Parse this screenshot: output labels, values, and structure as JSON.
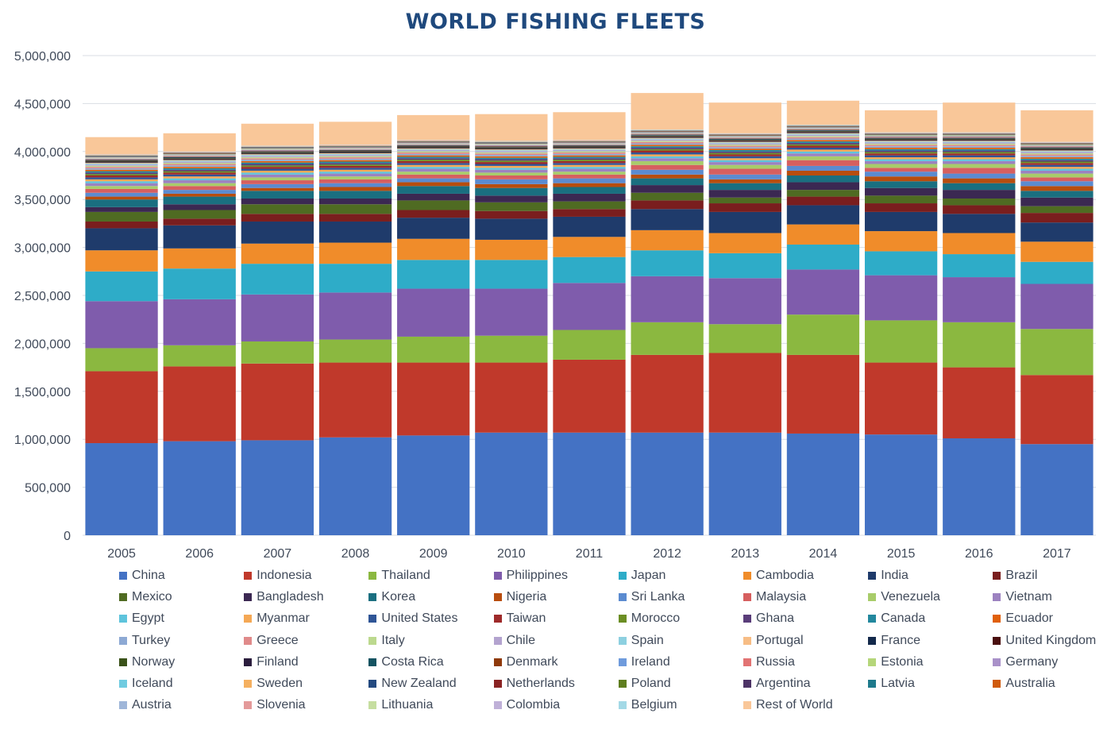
{
  "title": "WORLD FISHING FLEETS",
  "chart_data": {
    "type": "bar",
    "stacked": true,
    "title": "WORLD FISHING FLEETS",
    "xlabel": "",
    "ylabel": "",
    "ylim": [
      0,
      5000000
    ],
    "yticks": [
      0,
      500000,
      1000000,
      1500000,
      2000000,
      2500000,
      3000000,
      3500000,
      4000000,
      4500000,
      5000000
    ],
    "ytick_labels": [
      "0",
      "500,000",
      "1,000,000",
      "1,500,000",
      "2,000,000",
      "2,500,000",
      "3,000,000",
      "3,500,000",
      "4,000,000",
      "4,500,000",
      "5,000,000"
    ],
    "grid": true,
    "legend_position": "bottom",
    "categories": [
      "2005",
      "2006",
      "2007",
      "2008",
      "2009",
      "2010",
      "2011",
      "2012",
      "2013",
      "2014",
      "2015",
      "2016",
      "2017"
    ],
    "series": [
      {
        "name": "China",
        "color": "#4472c4",
        "values": [
          960000,
          980000,
          990000,
          1020000,
          1040000,
          1070000,
          1070000,
          1070000,
          1070000,
          1060000,
          1050000,
          1010000,
          950000
        ]
      },
      {
        "name": "Indonesia",
        "color": "#c0392b",
        "values": [
          750000,
          780000,
          800000,
          780000,
          760000,
          730000,
          760000,
          810000,
          830000,
          820000,
          750000,
          740000,
          720000
        ]
      },
      {
        "name": "Thailand",
        "color": "#8bb840",
        "values": [
          240000,
          220000,
          230000,
          240000,
          270000,
          280000,
          310000,
          340000,
          300000,
          420000,
          440000,
          470000,
          480000
        ]
      },
      {
        "name": "Philippines",
        "color": "#7f5cac",
        "values": [
          490000,
          480000,
          490000,
          490000,
          500000,
          490000,
          490000,
          480000,
          480000,
          470000,
          470000,
          470000,
          470000
        ]
      },
      {
        "name": "Japan",
        "color": "#2eacc8",
        "values": [
          310000,
          320000,
          320000,
          300000,
          300000,
          300000,
          270000,
          270000,
          260000,
          260000,
          250000,
          240000,
          230000
        ]
      },
      {
        "name": "Cambodia",
        "color": "#f08c2a",
        "values": [
          220000,
          210000,
          210000,
          220000,
          220000,
          210000,
          210000,
          210000,
          210000,
          210000,
          210000,
          220000,
          210000
        ]
      },
      {
        "name": "India",
        "color": "#1f3b6b",
        "values": [
          230000,
          240000,
          230000,
          220000,
          220000,
          220000,
          210000,
          220000,
          220000,
          200000,
          200000,
          200000,
          200000
        ]
      },
      {
        "name": "Brazil",
        "color": "#7a1e1e",
        "values": [
          70000,
          70000,
          80000,
          80000,
          80000,
          80000,
          80000,
          90000,
          90000,
          90000,
          90000,
          90000,
          100000
        ]
      },
      {
        "name": "Mexico",
        "color": "#4f6b22",
        "values": [
          100000,
          90000,
          100000,
          100000,
          100000,
          90000,
          80000,
          80000,
          60000,
          70000,
          80000,
          70000,
          70000
        ]
      },
      {
        "name": "Bangladesh",
        "color": "#3b2852",
        "values": [
          50000,
          60000,
          60000,
          60000,
          70000,
          70000,
          80000,
          80000,
          80000,
          80000,
          80000,
          90000,
          90000
        ]
      },
      {
        "name": "Korea",
        "color": "#1a6f80",
        "values": [
          80000,
          80000,
          80000,
          80000,
          80000,
          80000,
          70000,
          70000,
          70000,
          70000,
          70000,
          70000,
          70000
        ]
      },
      {
        "name": "Nigeria",
        "color": "#b84d0e",
        "values": [
          30000,
          30000,
          30000,
          40000,
          40000,
          40000,
          40000,
          40000,
          40000,
          50000,
          50000,
          50000,
          50000
        ]
      },
      {
        "name": "Sri Lanka",
        "color": "#5b8bd0",
        "values": [
          40000,
          40000,
          40000,
          40000,
          40000,
          50000,
          50000,
          50000,
          50000,
          50000,
          50000,
          50000,
          50000
        ]
      },
      {
        "name": "Malaysia",
        "color": "#d65f5f",
        "values": [
          40000,
          40000,
          40000,
          40000,
          40000,
          40000,
          40000,
          50000,
          60000,
          60000,
          40000,
          60000,
          40000
        ]
      },
      {
        "name": "Venezuela",
        "color": "#a8cc6a",
        "values": [
          30000,
          30000,
          30000,
          30000,
          30000,
          30000,
          30000,
          40000,
          40000,
          40000,
          40000,
          40000,
          40000
        ]
      },
      {
        "name": "Vietnam",
        "color": "#9c82c0",
        "values": [
          30000,
          30000,
          30000,
          30000,
          30000,
          30000,
          30000,
          30000,
          30000,
          30000,
          30000,
          30000,
          30000
        ]
      },
      {
        "name": "Egypt",
        "color": "#5ec4dc",
        "values": [
          20000,
          20000,
          20000,
          20000,
          20000,
          20000,
          20000,
          20000,
          20000,
          20000,
          20000,
          20000,
          20000
        ]
      },
      {
        "name": "Myanmar",
        "color": "#f5a855",
        "values": [
          20000,
          20000,
          20000,
          20000,
          20000,
          20000,
          20000,
          20000,
          20000,
          20000,
          20000,
          20000,
          20000
        ]
      },
      {
        "name": "United States",
        "color": "#2f5596",
        "values": [
          20000,
          20000,
          20000,
          20000,
          20000,
          20000,
          20000,
          20000,
          20000,
          20000,
          20000,
          20000,
          20000
        ]
      },
      {
        "name": "Taiwan",
        "color": "#9e2a2a",
        "values": [
          20000,
          20000,
          20000,
          20000,
          20000,
          20000,
          20000,
          20000,
          20000,
          20000,
          20000,
          20000,
          20000
        ]
      },
      {
        "name": "Morocco",
        "color": "#6b8e23",
        "values": [
          15000,
          15000,
          15000,
          15000,
          15000,
          15000,
          15000,
          15000,
          15000,
          15000,
          15000,
          15000,
          15000
        ]
      },
      {
        "name": "Ghana",
        "color": "#5a3d7a",
        "values": [
          15000,
          15000,
          15000,
          15000,
          15000,
          15000,
          15000,
          15000,
          15000,
          15000,
          15000,
          15000,
          15000
        ]
      },
      {
        "name": "Canada",
        "color": "#23889e",
        "values": [
          15000,
          15000,
          15000,
          15000,
          15000,
          15000,
          15000,
          15000,
          15000,
          15000,
          15000,
          15000,
          15000
        ]
      },
      {
        "name": "Ecuador",
        "color": "#e0600a",
        "values": [
          15000,
          15000,
          15000,
          15000,
          15000,
          15000,
          15000,
          15000,
          15000,
          15000,
          15000,
          15000,
          15000
        ]
      },
      {
        "name": "Turkey",
        "color": "#8da9d4",
        "values": [
          15000,
          15000,
          15000,
          15000,
          15000,
          15000,
          15000,
          15000,
          15000,
          15000,
          15000,
          15000,
          15000
        ]
      },
      {
        "name": "Greece",
        "color": "#e08a8a",
        "values": [
          15000,
          15000,
          15000,
          15000,
          15000,
          15000,
          15000,
          15000,
          15000,
          15000,
          15000,
          15000,
          15000
        ]
      },
      {
        "name": "Italy",
        "color": "#bcd98e",
        "values": [
          12000,
          12000,
          12000,
          12000,
          12000,
          12000,
          12000,
          12000,
          12000,
          12000,
          12000,
          12000,
          12000
        ]
      },
      {
        "name": "Chile",
        "color": "#b3a3cf",
        "values": [
          12000,
          12000,
          12000,
          12000,
          12000,
          12000,
          12000,
          12000,
          12000,
          12000,
          12000,
          12000,
          12000
        ]
      },
      {
        "name": "Spain",
        "color": "#8dd0e0",
        "values": [
          10000,
          10000,
          10000,
          10000,
          10000,
          10000,
          10000,
          10000,
          10000,
          10000,
          10000,
          10000,
          10000
        ]
      },
      {
        "name": "Portugal",
        "color": "#f7bd85",
        "values": [
          8000,
          8000,
          8000,
          8000,
          8000,
          8000,
          8000,
          8000,
          8000,
          8000,
          8000,
          8000,
          8000
        ]
      },
      {
        "name": "France",
        "color": "#13294b",
        "values": [
          7000,
          7000,
          7000,
          7000,
          7000,
          7000,
          7000,
          7000,
          7000,
          7000,
          7000,
          7000,
          7000
        ]
      },
      {
        "name": "United Kingdom",
        "color": "#4a0f0f",
        "values": [
          6000,
          6000,
          6000,
          6000,
          6000,
          6000,
          6000,
          6000,
          6000,
          6000,
          6000,
          6000,
          6000
        ]
      },
      {
        "name": "Norway",
        "color": "#3a5219",
        "values": [
          6000,
          6000,
          6000,
          6000,
          6000,
          6000,
          6000,
          6000,
          6000,
          6000,
          6000,
          6000,
          6000
        ]
      },
      {
        "name": "Finland",
        "color": "#2b1d3d",
        "values": [
          5000,
          5000,
          5000,
          5000,
          5000,
          5000,
          5000,
          5000,
          5000,
          5000,
          5000,
          5000,
          5000
        ]
      },
      {
        "name": "Costa Rica",
        "color": "#145361",
        "values": [
          5000,
          5000,
          5000,
          5000,
          5000,
          5000,
          5000,
          5000,
          5000,
          5000,
          5000,
          5000,
          5000
        ]
      },
      {
        "name": "Denmark",
        "color": "#8f3a0a",
        "values": [
          5000,
          5000,
          5000,
          5000,
          5000,
          5000,
          5000,
          5000,
          5000,
          5000,
          5000,
          5000,
          5000
        ]
      },
      {
        "name": "Ireland",
        "color": "#6f9bdc",
        "values": [
          5000,
          5000,
          5000,
          5000,
          5000,
          5000,
          5000,
          5000,
          5000,
          5000,
          5000,
          5000,
          5000
        ]
      },
      {
        "name": "Russia",
        "color": "#e27373",
        "values": [
          5000,
          5000,
          5000,
          5000,
          5000,
          5000,
          5000,
          5000,
          5000,
          5000,
          5000,
          5000,
          5000
        ]
      },
      {
        "name": "Estonia",
        "color": "#b5d67a",
        "values": [
          4000,
          4000,
          4000,
          4000,
          4000,
          4000,
          4000,
          4000,
          4000,
          4000,
          4000,
          4000,
          4000
        ]
      },
      {
        "name": "Germany",
        "color": "#a991c9",
        "values": [
          4000,
          4000,
          4000,
          4000,
          4000,
          4000,
          4000,
          4000,
          4000,
          4000,
          4000,
          4000,
          4000
        ]
      },
      {
        "name": "Iceland",
        "color": "#6fcbe0",
        "values": [
          4000,
          4000,
          4000,
          4000,
          4000,
          4000,
          4000,
          4000,
          4000,
          4000,
          4000,
          4000,
          4000
        ]
      },
      {
        "name": "Sweden",
        "color": "#f5b060",
        "values": [
          4000,
          4000,
          4000,
          4000,
          4000,
          4000,
          4000,
          4000,
          4000,
          4000,
          4000,
          4000,
          4000
        ]
      },
      {
        "name": "New Zealand",
        "color": "#244a80",
        "values": [
          3000,
          3000,
          3000,
          3000,
          3000,
          3000,
          3000,
          3000,
          3000,
          3000,
          3000,
          3000,
          3000
        ]
      },
      {
        "name": "Netherlands",
        "color": "#8a2323",
        "values": [
          3000,
          3000,
          3000,
          3000,
          3000,
          3000,
          3000,
          3000,
          3000,
          3000,
          3000,
          3000,
          3000
        ]
      },
      {
        "name": "Poland",
        "color": "#5e7d1e",
        "values": [
          3000,
          3000,
          3000,
          3000,
          3000,
          3000,
          3000,
          3000,
          3000,
          3000,
          3000,
          3000,
          3000
        ]
      },
      {
        "name": "Argentina",
        "color": "#4d3366",
        "values": [
          3000,
          3000,
          3000,
          3000,
          3000,
          3000,
          3000,
          3000,
          3000,
          3000,
          3000,
          3000,
          3000
        ]
      },
      {
        "name": "Latvia",
        "color": "#1e7a8c",
        "values": [
          3000,
          3000,
          3000,
          3000,
          3000,
          3000,
          3000,
          3000,
          3000,
          3000,
          3000,
          3000,
          3000
        ]
      },
      {
        "name": "Australia",
        "color": "#cf5a0c",
        "values": [
          3000,
          3000,
          3000,
          3000,
          3000,
          3000,
          3000,
          3000,
          3000,
          3000,
          3000,
          3000,
          3000
        ]
      },
      {
        "name": "Austria",
        "color": "#9fb6d9",
        "values": [
          2000,
          2000,
          2000,
          2000,
          2000,
          2000,
          2000,
          2000,
          2000,
          2000,
          2000,
          2000,
          2000
        ]
      },
      {
        "name": "Slovenia",
        "color": "#e49a9a",
        "values": [
          2000,
          2000,
          2000,
          2000,
          2000,
          2000,
          2000,
          2000,
          2000,
          2000,
          2000,
          2000,
          2000
        ]
      },
      {
        "name": "Lithuania",
        "color": "#c6dea0",
        "values": [
          2000,
          2000,
          2000,
          2000,
          2000,
          2000,
          2000,
          2000,
          2000,
          2000,
          2000,
          2000,
          2000
        ]
      },
      {
        "name": "Colombia",
        "color": "#bfb0d8",
        "values": [
          2000,
          2000,
          2000,
          2000,
          2000,
          2000,
          2000,
          2000,
          2000,
          2000,
          2000,
          2000,
          2000
        ]
      },
      {
        "name": "Belgium",
        "color": "#a3d9e6",
        "values": [
          2000,
          2000,
          2000,
          2000,
          2000,
          2000,
          2000,
          2000,
          2000,
          2000,
          2000,
          2000,
          2000
        ]
      },
      {
        "name": "Rest of World",
        "color": "#f9c799",
        "values": [
          180000,
          190000,
          230000,
          240000,
          260000,
          280000,
          290000,
          380000,
          320000,
          250000,
          230000,
          310000,
          330000
        ]
      }
    ]
  }
}
